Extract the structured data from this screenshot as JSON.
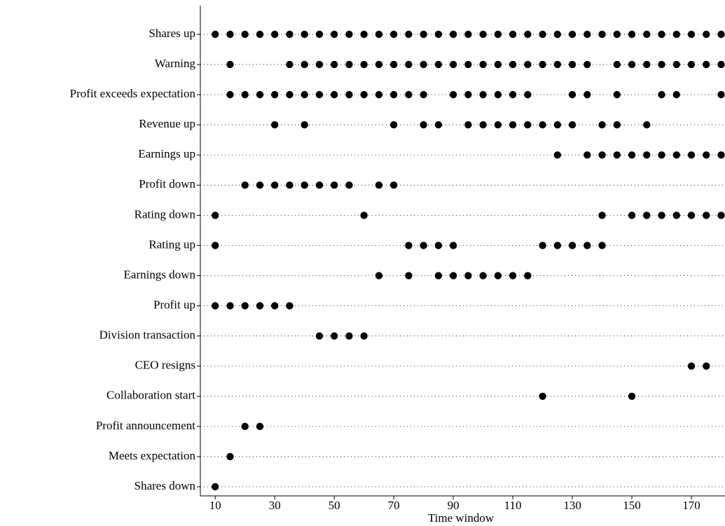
{
  "chart_data": {
    "type": "dotplot",
    "x_label": "Time window",
    "rows": [
      {
        "label": "Shares up",
        "x": [
          10,
          15,
          20,
          25,
          30,
          35,
          40,
          45,
          50,
          55,
          60,
          65,
          70,
          75,
          80,
          85,
          90,
          95,
          100,
          105,
          110,
          115,
          120,
          125,
          130,
          135,
          140,
          145,
          150,
          155,
          160,
          165,
          170,
          175,
          180
        ]
      },
      {
        "label": "Warning",
        "x": [
          15,
          35,
          40,
          45,
          50,
          55,
          60,
          65,
          70,
          75,
          80,
          85,
          90,
          95,
          100,
          105,
          110,
          115,
          120,
          125,
          130,
          135,
          145,
          150,
          155,
          160,
          165,
          170,
          175,
          180
        ]
      },
      {
        "label": "Profit exceeds expectation",
        "x": [
          15,
          20,
          25,
          30,
          35,
          40,
          45,
          50,
          55,
          60,
          65,
          70,
          75,
          80,
          90,
          95,
          100,
          105,
          110,
          115,
          130,
          135,
          145,
          160,
          165,
          180
        ]
      },
      {
        "label": "Revenue up",
        "x": [
          30,
          40,
          70,
          80,
          85,
          95,
          100,
          105,
          110,
          115,
          120,
          125,
          130,
          140,
          145,
          155
        ]
      },
      {
        "label": "Earnings up",
        "x": [
          125,
          135,
          140,
          145,
          150,
          155,
          160,
          165,
          170,
          175,
          180
        ]
      },
      {
        "label": "Profit down",
        "x": [
          20,
          25,
          30,
          35,
          40,
          45,
          50,
          55,
          65,
          70
        ]
      },
      {
        "label": "Rating down",
        "x": [
          10,
          60,
          140,
          150,
          155,
          160,
          165,
          170,
          175,
          180
        ]
      },
      {
        "label": "Rating up",
        "x": [
          10,
          75,
          80,
          85,
          90,
          120,
          125,
          130,
          135,
          140
        ]
      },
      {
        "label": "Earnings down",
        "x": [
          65,
          75,
          85,
          90,
          95,
          100,
          105,
          110,
          115
        ]
      },
      {
        "label": "Profit up",
        "x": [
          10,
          15,
          20,
          25,
          30,
          35
        ]
      },
      {
        "label": "Division transaction",
        "x": [
          45,
          50,
          55,
          60
        ]
      },
      {
        "label": "CEO resigns",
        "x": [
          170,
          175
        ]
      },
      {
        "label": "Collaboration start",
        "x": [
          120,
          150
        ]
      },
      {
        "label": "Profit announcement",
        "x": [
          20,
          25
        ]
      },
      {
        "label": "Meets expectation",
        "x": [
          15
        ]
      },
      {
        "label": "Shares down",
        "x": [
          10
        ]
      }
    ],
    "xlim": [
      5,
      180
    ],
    "xticks": [
      10,
      30,
      50,
      70,
      90,
      110,
      130,
      150,
      170
    ],
    "grid": true,
    "color": "#000000"
  }
}
